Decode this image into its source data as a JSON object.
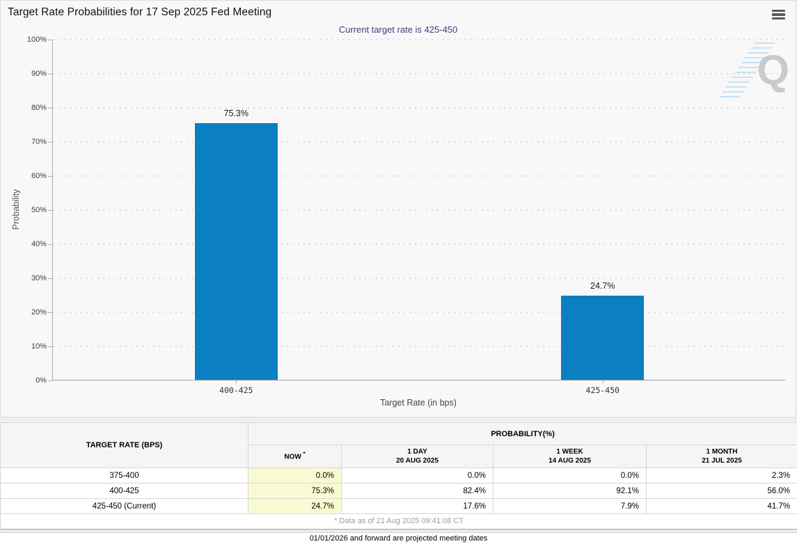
{
  "header": {
    "title": "Target Rate Probabilities for 17 Sep 2025 Fed Meeting",
    "subtitle": "Current target rate is 425-450",
    "menu_icon": "hamburger-menu"
  },
  "chart_data": {
    "type": "bar",
    "title": "Target Rate Probabilities for 17 Sep 2025 Fed Meeting",
    "subtitle": "Current target rate is 425-450",
    "categories": [
      "400-425",
      "425-450"
    ],
    "values": [
      75.3,
      24.7
    ],
    "value_labels": [
      "75.3%",
      "24.7%"
    ],
    "xlabel": "Target Rate (in bps)",
    "ylabel": "Probability",
    "ylim": [
      0,
      100
    ],
    "ytick_step": 10,
    "ytick_labels": [
      "0%",
      "10%",
      "20%",
      "30%",
      "40%",
      "50%",
      "60%",
      "70%",
      "80%",
      "90%",
      "100%"
    ],
    "grid": "horizontal-dotted",
    "legend": "none",
    "bar_color": "#0a80c2",
    "watermark_letter": "Q"
  },
  "table": {
    "col_header": "TARGET RATE (BPS)",
    "group_header": "PROBABILITY(%)",
    "subheaders": [
      {
        "label": "NOW",
        "sup": "*"
      },
      {
        "label": "1 DAY",
        "date": "20 AUG 2025"
      },
      {
        "label": "1 WEEK",
        "date": "14 AUG 2025"
      },
      {
        "label": "1 MONTH",
        "date": "21 JUL 2025"
      }
    ],
    "rows": [
      {
        "rate": "375-400",
        "now": "0.0%",
        "day": "0.0%",
        "week": "0.0%",
        "month": "2.3%"
      },
      {
        "rate": "400-425",
        "now": "75.3%",
        "day": "82.4%",
        "week": "92.1%",
        "month": "56.0%"
      },
      {
        "rate": "425-450 (Current)",
        "now": "24.7%",
        "day": "17.6%",
        "week": "7.9%",
        "month": "41.7%"
      }
    ],
    "footnote": "* Data as of 21 Aug 2025 09:41:08 CT"
  },
  "footer": {
    "projected_note": "01/01/2026 and forward are projected meeting dates"
  },
  "colors": {
    "bar": "#0a80c2",
    "now_cell_bg": "#fafad2",
    "subtitle_text": "#3b3f7e",
    "watermark_gray": "#c6c6c6",
    "watermark_blue": "#aed9f0",
    "panel_bg": "#f8f8f8"
  }
}
